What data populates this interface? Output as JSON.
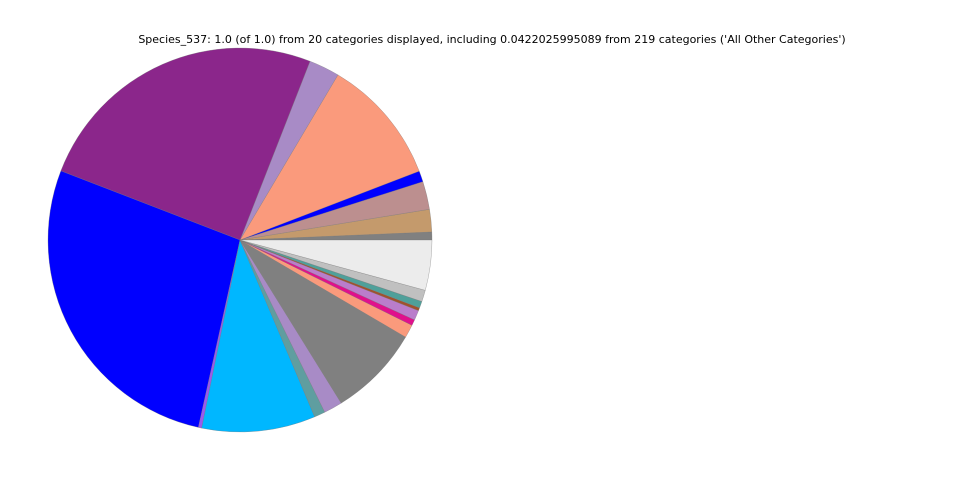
{
  "chart_data": {
    "type": "pie",
    "title": "Species_537: 1.0 (of 1.0) from 20 categories displayed, including 0.0422025995089 from 219 categories ('All Other Categories')",
    "values": [
      0.0067,
      0.0189,
      0.0236,
      0.0092,
      0.1064,
      0.0258,
      0.2508,
      0.2738,
      0.0028,
      0.0956,
      0.0092,
      0.0156,
      0.0772,
      0.0111,
      0.005,
      0.0083,
      0.0025,
      0.0056,
      0.0097,
      0.0422
    ],
    "colors": [
      "#808080",
      "#c49a6c",
      "#bc8f8f",
      "#0000ff",
      "#fa9a7c",
      "#a88bc6",
      "#8b268b",
      "#0000ff",
      "#9b59f0",
      "#00b7ff",
      "#5f9ea0",
      "#a88bc6",
      "#808080",
      "#fa9a7c",
      "#e0108c",
      "#ba7dcb",
      "#a0522d",
      "#4fa09a",
      "#c0c0c0",
      "#ececec"
    ]
  }
}
